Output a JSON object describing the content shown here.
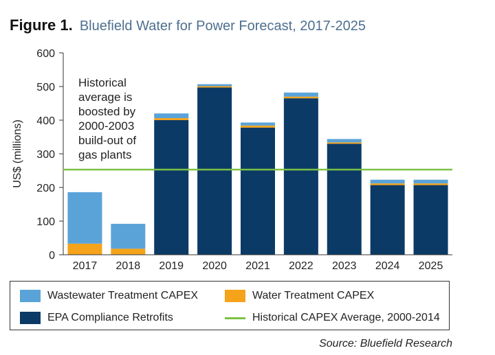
{
  "header": {
    "figure_label": "Figure 1.",
    "title": "Bluefield Water for Power Forecast, 2017-2025"
  },
  "annotation": {
    "lines": [
      "Historical",
      "average is",
      "boosted by",
      "2000-2003",
      "build-out of",
      "gas plants"
    ]
  },
  "colors": {
    "wastewater": "#5aa3d8",
    "water": "#f5a31a",
    "epa": "#0b3a66",
    "average": "#7ac143"
  },
  "chart_data": {
    "type": "bar",
    "stacked": true,
    "title": "Bluefield Water for Power Forecast, 2017-2025",
    "xlabel": "",
    "ylabel": "US$ (millions)",
    "ylim": [
      0,
      600
    ],
    "yticks": [
      0,
      100,
      200,
      300,
      400,
      500,
      600
    ],
    "categories": [
      "2017",
      "2018",
      "2019",
      "2020",
      "2021",
      "2022",
      "2023",
      "2024",
      "2025"
    ],
    "series": [
      {
        "name": "EPA Compliance Retrofits",
        "values": [
          0,
          0,
          400,
          497,
          378,
          465,
          330,
          207,
          207
        ]
      },
      {
        "name": "Water Treatment CAPEX",
        "values": [
          33,
          18,
          6,
          4,
          6,
          5,
          4,
          5,
          5
        ]
      },
      {
        "name": "Wastewater Treatment CAPEX",
        "values": [
          153,
          74,
          14,
          6,
          9,
          12,
          10,
          11,
          11
        ]
      }
    ],
    "reference_line": {
      "name": "Historical CAPEX Average, 2000-2014",
      "value": 253
    },
    "legend_position": "bottom"
  },
  "legend": {
    "wastewater": "Wastewater Treatment CAPEX",
    "water": "Water Treatment CAPEX",
    "epa": "EPA Compliance Retrofits",
    "average": "Historical CAPEX Average, 2000-2014"
  },
  "source": "Source: Bluefield Research"
}
